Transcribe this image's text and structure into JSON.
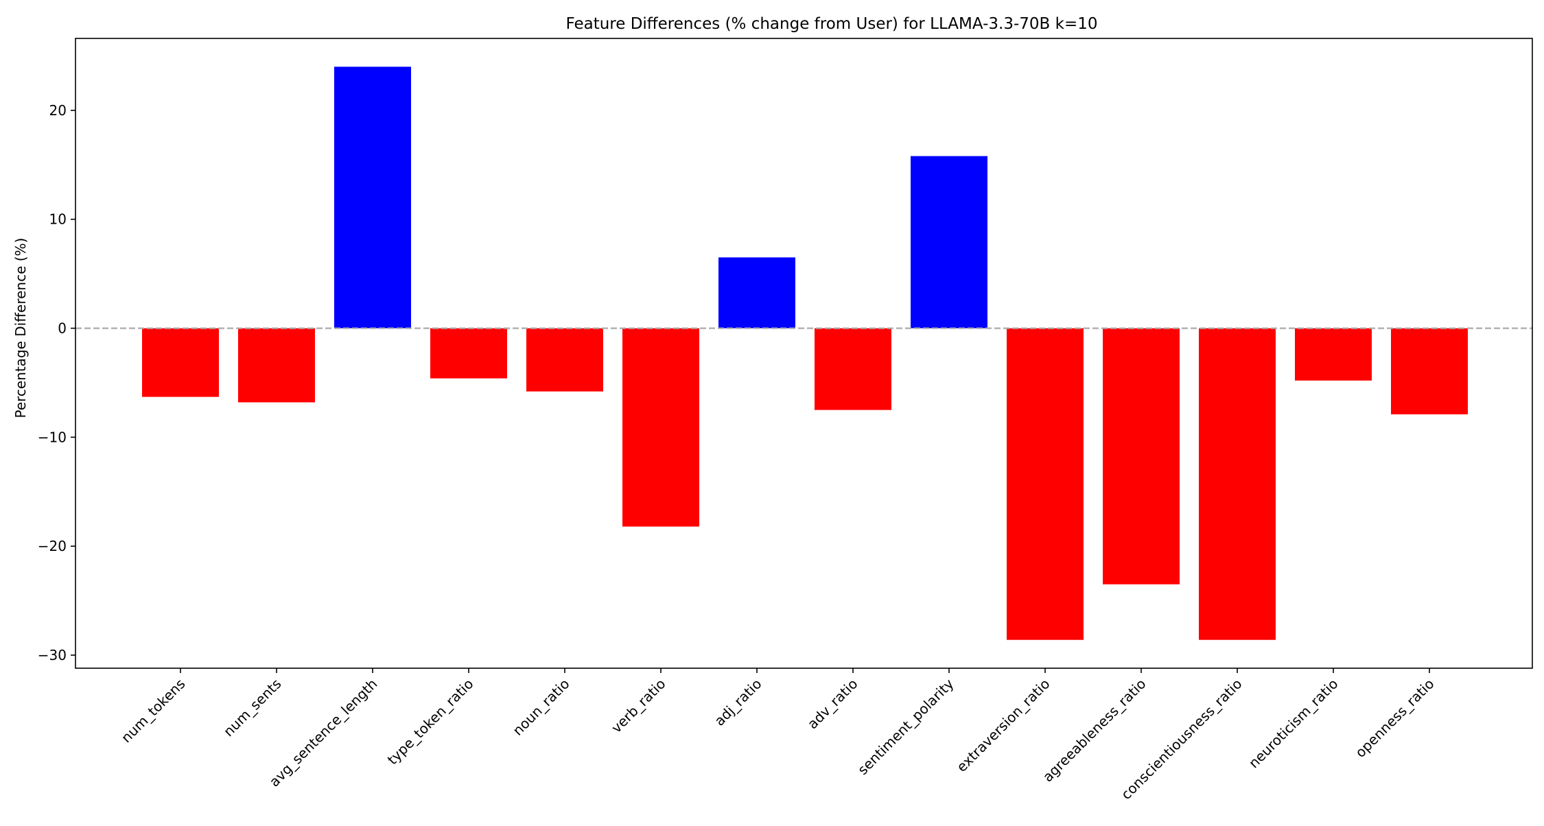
{
  "chart_data": {
    "type": "bar",
    "title": "Feature Differences (% change from User) for LLAMA-3.3-70B k=10",
    "xlabel": "",
    "ylabel": "Percentage Difference (%)",
    "ylim": [
      -31.2,
      26.6
    ],
    "yticks": [
      -30,
      -20,
      -10,
      0,
      10,
      20
    ],
    "ytick_labels": [
      "−30",
      "−20",
      "−10",
      "0",
      "10",
      "20"
    ],
    "reference_line": {
      "y": 0,
      "style": "dashed",
      "color": "#aaaaaa"
    },
    "grid": false,
    "legend": "none",
    "colors": {
      "positive": "#0000ff",
      "negative": "#ff0000"
    },
    "categories": [
      "num_tokens",
      "num_sents",
      "avg_sentence_length",
      "type_token_ratio",
      "noun_ratio",
      "verb_ratio",
      "adj_ratio",
      "adv_ratio",
      "sentiment_polarity",
      "extraversion_ratio",
      "agreeableness_ratio",
      "conscientiousness_ratio",
      "neuroticism_ratio",
      "openness_ratio"
    ],
    "values": [
      -6.3,
      -6.8,
      24.0,
      -4.6,
      -5.8,
      -18.2,
      6.5,
      -7.5,
      15.8,
      -28.6,
      -23.5,
      -28.6,
      -4.8,
      -7.9
    ]
  }
}
